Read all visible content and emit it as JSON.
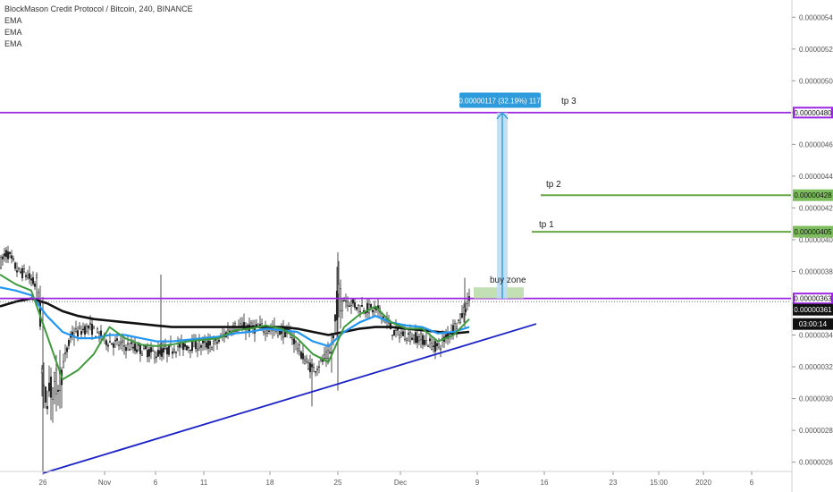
{
  "header": {
    "symbol_line": "BlockMason Credit Protocol / Bitcoin, 240, BINANCE",
    "indicators": [
      "EMA",
      "EMA",
      "EMA"
    ]
  },
  "colors": {
    "purple": "#9c27e0",
    "green": "#66a845",
    "blue_trend": "#1a22c8",
    "ema_fast": "#3d9a3d",
    "ema_mid": "#2196f3",
    "ema_slow": "#111111",
    "measure_blue": "#2e9bdc",
    "buy_zone": "#b9dba8"
  },
  "chart_data": {
    "type": "candlestick",
    "symbol": "BlockMason Credit Protocol / Bitcoin",
    "interval": "240",
    "exchange": "BINANCE",
    "ylim": [
      2.44e-06,
      5.52e-06
    ],
    "y_ticks": [
      "0.00000260",
      "0.00000280",
      "0.00000300",
      "0.00000320",
      "0.00000340",
      "0.00000360",
      "0.00000380",
      "0.00000400",
      "0.00000420",
      "0.00000440",
      "0.00000460",
      "0.00000480",
      "0.00000500",
      "0.00000520",
      "0.00000540"
    ],
    "x_ticks": [
      "26",
      "Nov",
      "6",
      "11",
      "18",
      "25",
      "Dec",
      "9",
      "16",
      "23",
      "15:00",
      "2020",
      "6"
    ],
    "price_tags": [
      {
        "label": "0.00000480",
        "value": 4.8e-06,
        "style": "purple"
      },
      {
        "label": "0.00000428",
        "value": 4.28e-06,
        "style": "green"
      },
      {
        "label": "0.00000405",
        "value": 4.05e-06,
        "style": "green"
      },
      {
        "label": "0.00000363",
        "value": 3.63e-06,
        "style": "purple"
      },
      {
        "label": "0.00000361",
        "value": 3.61e-06,
        "style": "dark"
      },
      {
        "label": "03:00:14",
        "value": 3.525e-06,
        "style": "dark"
      }
    ],
    "levels": [
      {
        "name": "tp 3",
        "value": 4.8e-06
      },
      {
        "name": "tp 2",
        "value": 4.28e-06
      },
      {
        "name": "tp 1",
        "value": 4.05e-06
      },
      {
        "name": "buy zone",
        "value": 3.63e-06
      }
    ],
    "measure_label": "0.00000117 (32.19%) 117",
    "buy_zone_label": "buy zone",
    "trendline": {
      "start": [
        "26",
        2.53e-06
      ],
      "end": [
        "16",
        3.47e-06
      ]
    },
    "ema_fast": [
      3.78e-06,
      3.72e-06,
      3.68e-06,
      3.4e-06,
      3.12e-06,
      3.18e-06,
      3.28e-06,
      3.45e-06,
      3.38e-06,
      3.34e-06,
      3.33e-06,
      3.34e-06,
      3.36e-06,
      3.37e-06,
      3.38e-06,
      3.43e-06,
      3.44e-06,
      3.46e-06,
      3.44e-06,
      3.38e-06,
      3.28e-06,
      3.23e-06,
      3.45e-06,
      3.53e-06,
      3.58e-06,
      3.48e-06,
      3.44e-06,
      3.44e-06,
      3.36e-06,
      3.4e-06,
      3.5e-06
    ],
    "ema_mid": [
      3.7e-06,
      3.68e-06,
      3.65e-06,
      3.52e-06,
      3.42e-06,
      3.38e-06,
      3.38e-06,
      3.4e-06,
      3.4e-06,
      3.38e-06,
      3.36e-06,
      3.36e-06,
      3.37e-06,
      3.38e-06,
      3.39e-06,
      3.41e-06,
      3.42e-06,
      3.44e-06,
      3.43e-06,
      3.42e-06,
      3.36e-06,
      3.33e-06,
      3.42e-06,
      3.48e-06,
      3.52e-06,
      3.48e-06,
      3.46e-06,
      3.45e-06,
      3.41e-06,
      3.42e-06,
      3.45e-06
    ],
    "ema_slow": [
      3.58e-06,
      3.61e-06,
      3.63e-06,
      3.6e-06,
      3.55e-06,
      3.52e-06,
      3.5e-06,
      3.49e-06,
      3.48e-06,
      3.47e-06,
      3.46e-06,
      3.45e-06,
      3.45e-06,
      3.45e-06,
      3.45e-06,
      3.45e-06,
      3.45e-06,
      3.45e-06,
      3.45e-06,
      3.44e-06,
      3.42e-06,
      3.4e-06,
      3.42e-06,
      3.44e-06,
      3.45e-06,
      3.45e-06,
      3.44e-06,
      3.43e-06,
      3.42e-06,
      3.41e-06,
      3.42e-06
    ]
  }
}
